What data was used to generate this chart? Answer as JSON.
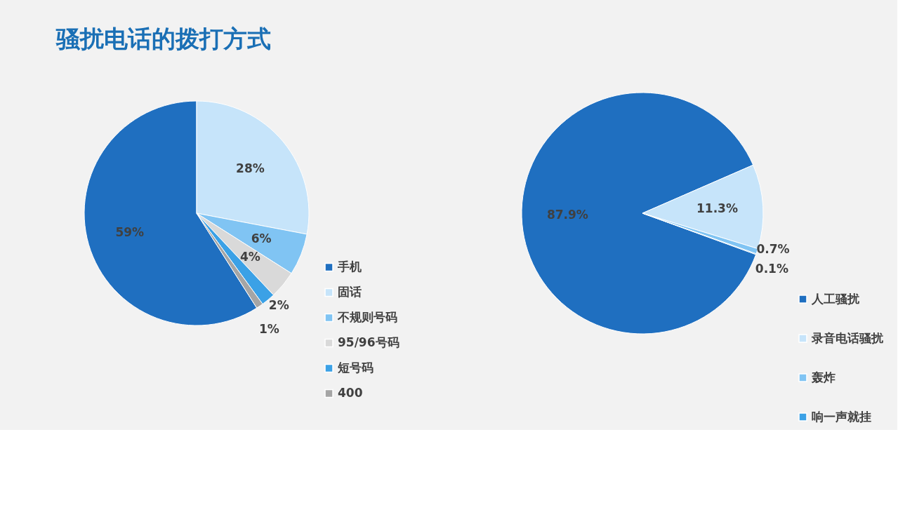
{
  "chart_data": [
    {
      "type": "pie",
      "title": "骚扰电话的拨打方式",
      "categories": [
        "手机",
        "固话",
        "不规则号码",
        "95/96号码",
        "短号码",
        "400"
      ],
      "values": [
        59,
        28,
        6,
        4,
        2,
        1
      ],
      "colors": [
        "#1f6fc0",
        "#c6e4fa",
        "#80c4f3",
        "#d9d9d9",
        "#3ba1e6",
        "#a5a5a5"
      ],
      "value_labels": [
        "59%",
        "28%",
        "6%",
        "4%",
        "2%",
        "1%"
      ],
      "legend": "right"
    },
    {
      "type": "pie",
      "categories": [
        "人工骚扰",
        "录音电话骚扰",
        "轰炸",
        "响一声就挂"
      ],
      "values": [
        87.9,
        11.3,
        0.7,
        0.1
      ],
      "colors": [
        "#1f6fc0",
        "#c6e4fa",
        "#80c4f3",
        "#3ba1e6"
      ],
      "value_labels": [
        "87.9%",
        "11.3%",
        "0.7%",
        "0.1%"
      ],
      "legend": "right"
    }
  ]
}
